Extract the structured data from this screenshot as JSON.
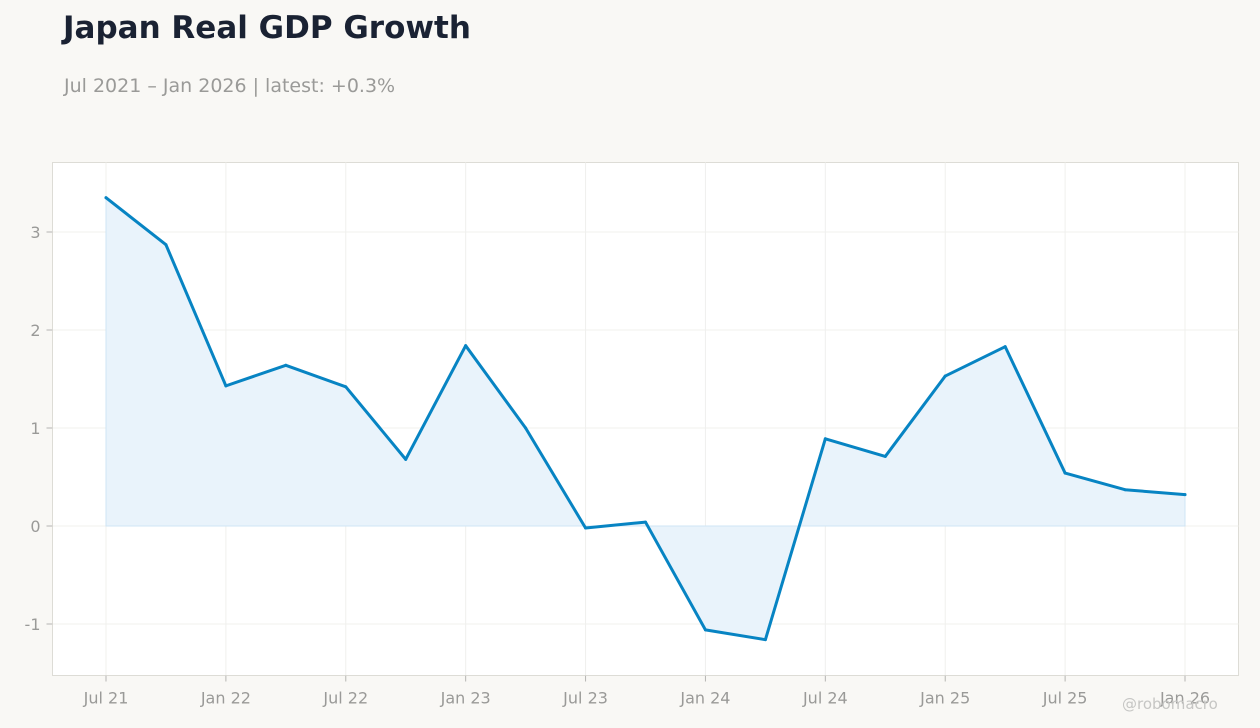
{
  "header": {
    "title": "Japan Real GDP Growth",
    "subtitle": "Jul 2021 – Jan 2026 | latest: +0.3%"
  },
  "watermark": "@robomacro",
  "colors": {
    "line": "#0784c3",
    "fill": "#e9f3fb",
    "background": "#f9f8f5",
    "plot_background": "#ffffff"
  },
  "chart_data": {
    "type": "area",
    "title": "Japan Real GDP Growth",
    "subtitle": "Jul 2021 – Jan 2026 | latest: +0.3%",
    "x": [
      "2021-07",
      "2021-10",
      "2022-01",
      "2022-04",
      "2022-07",
      "2022-10",
      "2023-01",
      "2023-04",
      "2023-07",
      "2023-10",
      "2024-01",
      "2024-04",
      "2024-07",
      "2024-10",
      "2025-01",
      "2025-04",
      "2025-07",
      "2025-10",
      "2026-01"
    ],
    "series": [
      {
        "values": [
          3.35,
          2.87,
          1.43,
          1.64,
          1.42,
          0.68,
          1.84,
          1.0,
          -0.02,
          0.04,
          -1.06,
          -1.16,
          0.89,
          0.71,
          1.53,
          1.83,
          0.54,
          0.37,
          0.32
        ]
      }
    ],
    "x_ticks": [
      "Jul 21",
      "Jan 22",
      "Jul 22",
      "Jan 23",
      "Jul 23",
      "Jan 24",
      "Jul 24",
      "Jan 25",
      "Jul 25",
      "Jan 26"
    ],
    "y_ticks": [
      "-1",
      "0",
      "1",
      "2",
      "3"
    ],
    "xlabel": "",
    "ylabel": "",
    "ylim": [
      -1.5,
      3.75
    ],
    "grid": true,
    "legend": "none"
  }
}
